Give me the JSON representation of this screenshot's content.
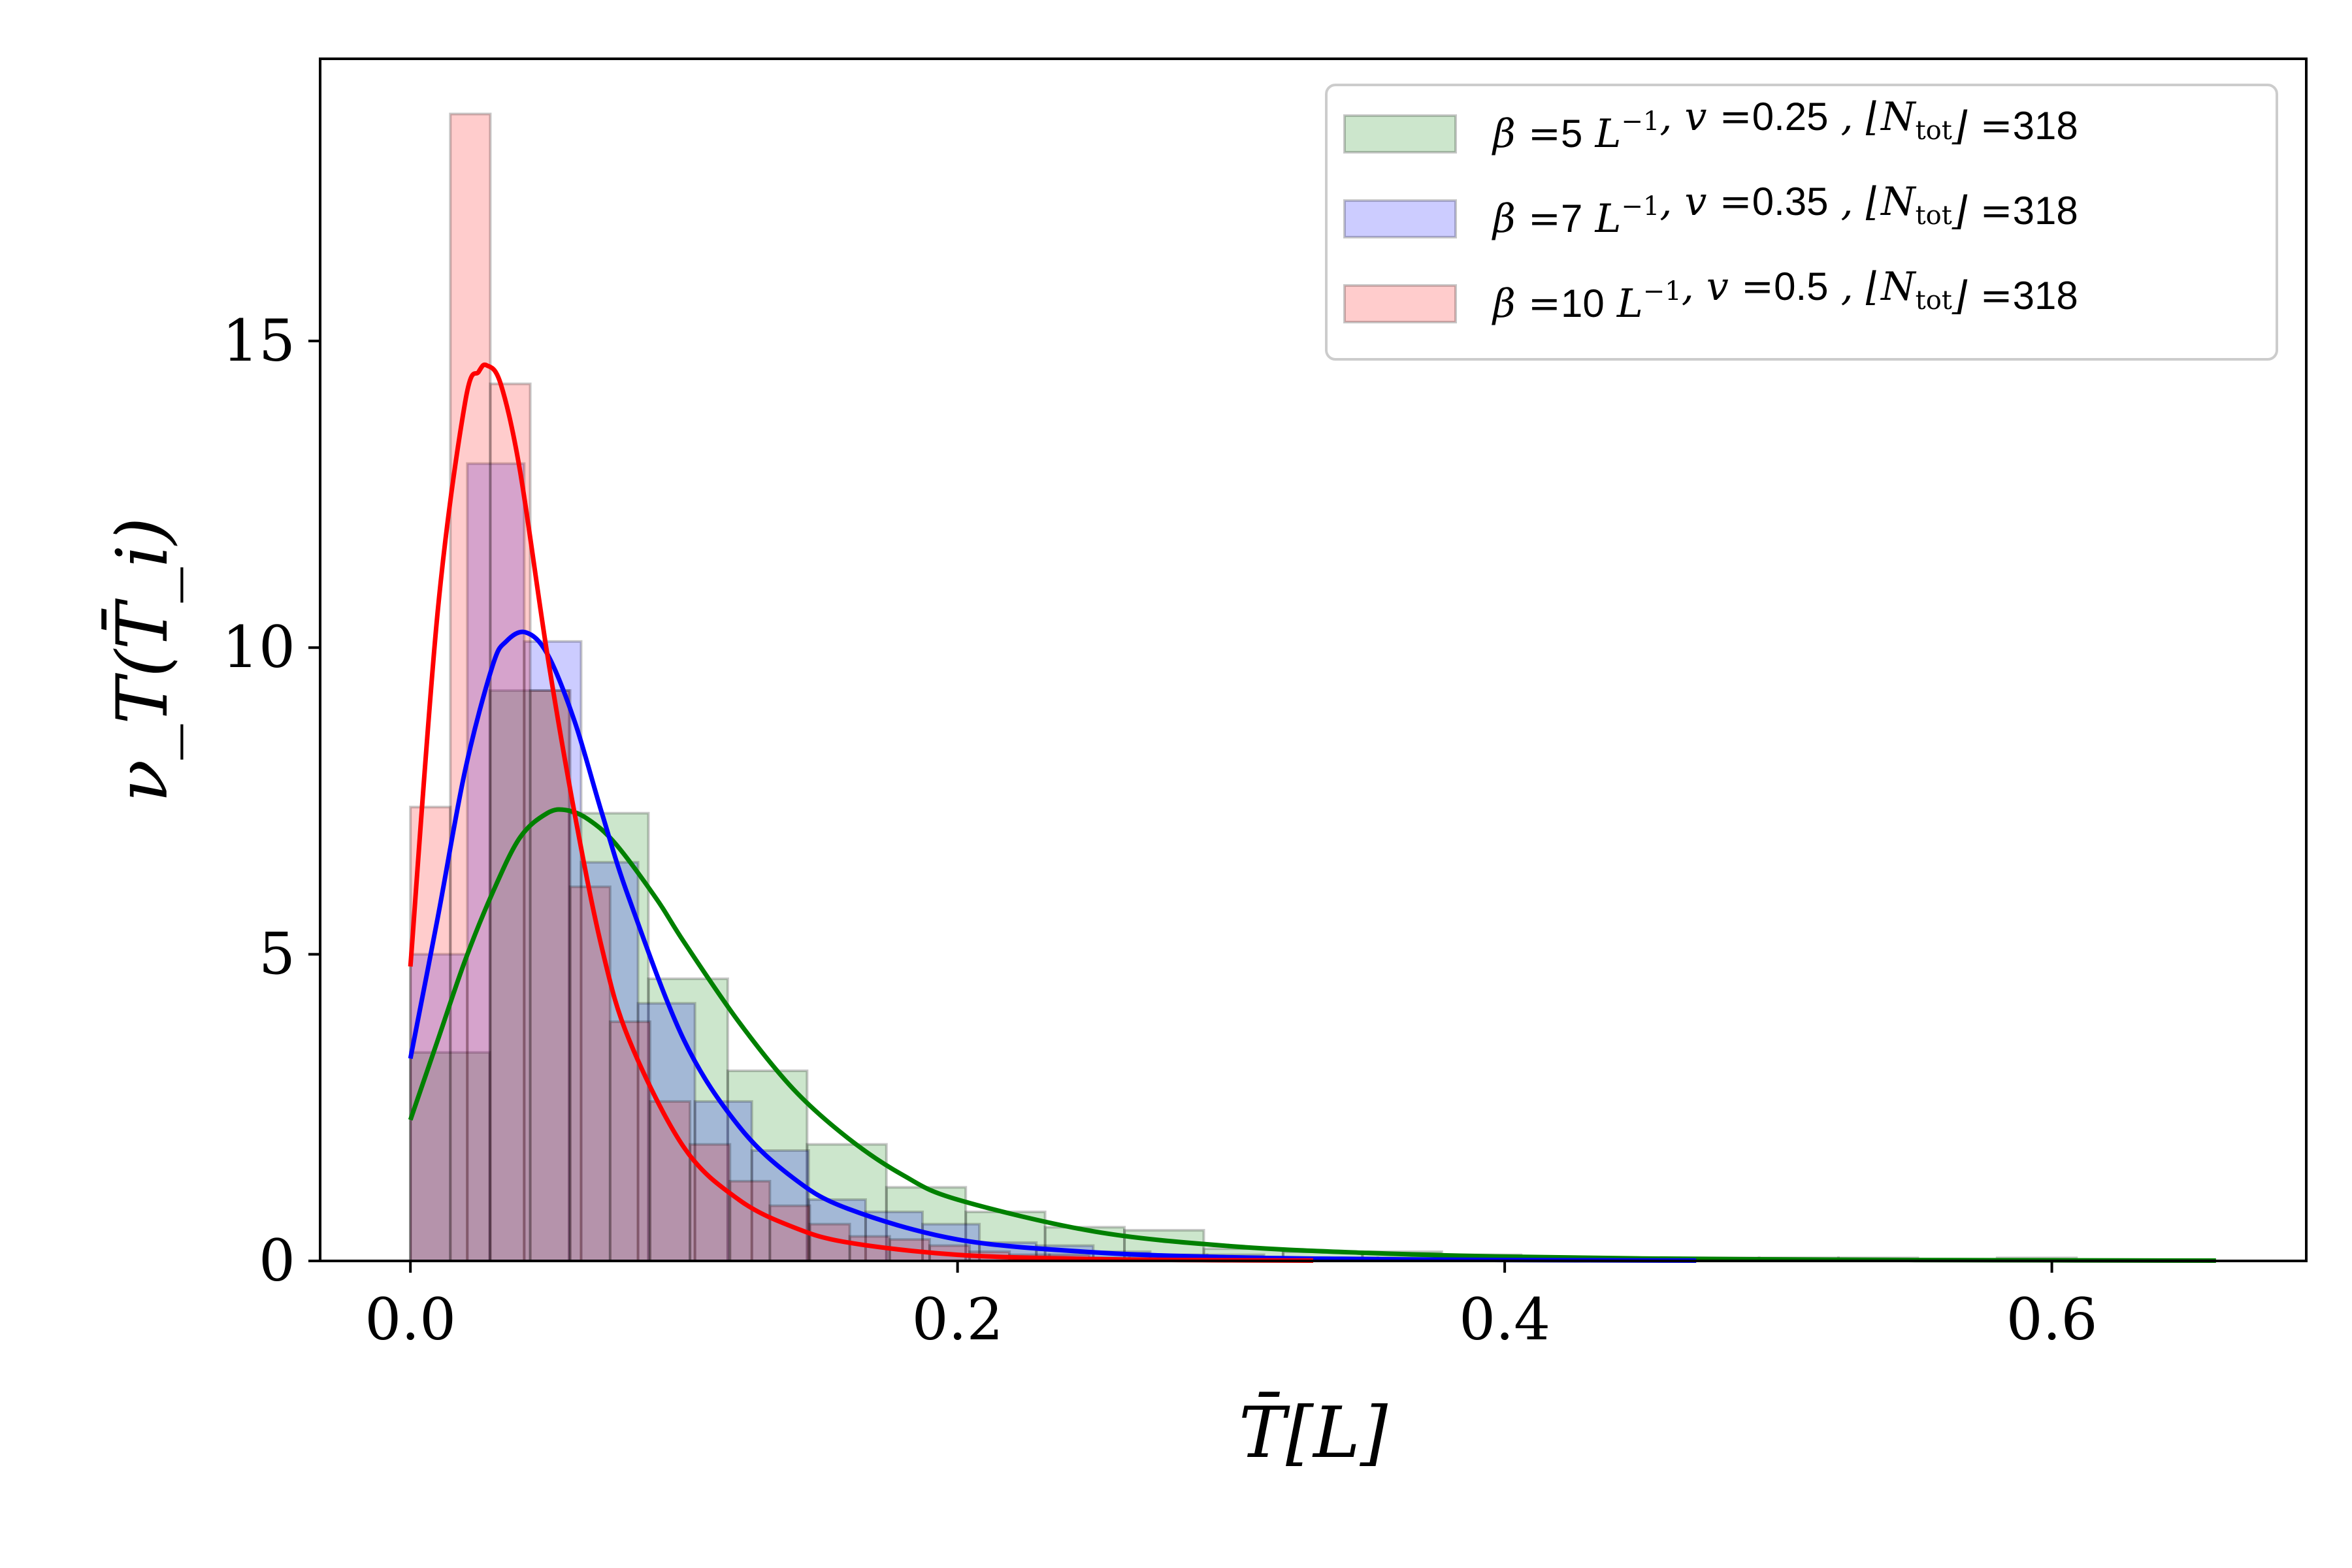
{
  "chart_data": {
    "type": "bar",
    "xlabel": "T̄[L]",
    "ylabel": "ν_T(T̄_i)",
    "xlim": [
      -0.033,
      0.693
    ],
    "ylim": [
      0,
      19.6
    ],
    "xticks": [
      0.0,
      0.2,
      0.4,
      0.6
    ],
    "xtick_labels": [
      "0.0",
      "0.2",
      "0.4",
      "0.6"
    ],
    "yticks": [
      0,
      5,
      10,
      15
    ],
    "ytick_labels": [
      "0",
      "5",
      "10",
      "15"
    ],
    "grid": false,
    "legend_position": "top-right",
    "series": [
      {
        "name": "β =5 L⁻¹, v =0.25 , ⌊N_tot⌋ =318",
        "legend": {
          "beta": "5",
          "v": "0.25",
          "N": "318"
        },
        "color": "#008000",
        "bin_edges": [
          0.0,
          0.029,
          0.058,
          0.087,
          0.116,
          0.145,
          0.174,
          0.203,
          0.232,
          0.261,
          0.29,
          0.319,
          0.348,
          0.377,
          0.406,
          0.435,
          0.464,
          0.493,
          0.522,
          0.551,
          0.58,
          0.609,
          0.638,
          0.667
        ],
        "counts": [
          3.4,
          9.3,
          7.3,
          4.6,
          3.1,
          1.9,
          1.2,
          0.8,
          0.55,
          0.5,
          0.2,
          0.15,
          0.15,
          0.1,
          0.05,
          0.05,
          0.05,
          0.05,
          0.05,
          0.0,
          0.05,
          0.0,
          0.0
        ],
        "curve_x": [
          0.0,
          0.01,
          0.02,
          0.03,
          0.04,
          0.05,
          0.057,
          0.065,
          0.075,
          0.09,
          0.1,
          0.12,
          0.14,
          0.16,
          0.18,
          0.2,
          0.25,
          0.3,
          0.35,
          0.4,
          0.45,
          0.5,
          0.55,
          0.6,
          0.66
        ],
        "curve_y": [
          2.3,
          3.6,
          4.9,
          6.0,
          6.9,
          7.3,
          7.35,
          7.2,
          6.8,
          5.9,
          5.2,
          3.9,
          2.8,
          2.0,
          1.4,
          1.0,
          0.48,
          0.24,
          0.13,
          0.07,
          0.04,
          0.025,
          0.015,
          0.01,
          0.005
        ]
      },
      {
        "name": "β =7 L⁻¹, v =0.35 , ⌊N_tot⌋ =318",
        "legend": {
          "beta": "7",
          "v": "0.35",
          "N": "318"
        },
        "color": "#0000ff",
        "bin_edges": [
          0.0,
          0.0208,
          0.0416,
          0.0624,
          0.0832,
          0.104,
          0.1248,
          0.1456,
          0.1664,
          0.1872,
          0.208,
          0.2288,
          0.2496,
          0.2704,
          0.2912,
          0.312,
          0.3328,
          0.3536,
          0.3744,
          0.3952,
          0.416,
          0.4368,
          0.4576
        ],
        "counts": [
          5.0,
          13.0,
          10.1,
          6.5,
          4.2,
          2.6,
          1.8,
          1.0,
          0.8,
          0.6,
          0.3,
          0.25,
          0.15,
          0.1,
          0.1,
          0.05,
          0.05,
          0.05,
          0.05,
          0.0,
          0.0,
          0.05
        ],
        "curve_x": [
          0.0,
          0.01,
          0.02,
          0.03,
          0.035,
          0.042,
          0.05,
          0.06,
          0.07,
          0.08,
          0.1,
          0.12,
          0.14,
          0.16,
          0.2,
          0.25,
          0.3,
          0.35,
          0.4,
          0.47
        ],
        "curve_y": [
          3.3,
          5.6,
          8.0,
          9.7,
          10.1,
          10.25,
          9.9,
          8.8,
          7.3,
          5.9,
          3.6,
          2.2,
          1.35,
          0.85,
          0.35,
          0.14,
          0.06,
          0.03,
          0.015,
          0.005
        ]
      },
      {
        "name": "β =10 L⁻¹, v =0.5 , ⌊N_tot⌋ =318",
        "legend": {
          "beta": "10",
          "v": "0.5",
          "N": "318"
        },
        "color": "#ff0000",
        "bin_edges": [
          0.0,
          0.0146,
          0.0292,
          0.0438,
          0.0584,
          0.073,
          0.0876,
          0.1022,
          0.1168,
          0.1314,
          0.146,
          0.1606,
          0.1752,
          0.1898,
          0.2044,
          0.219,
          0.2336,
          0.2482,
          0.2628,
          0.2774,
          0.292,
          0.3066,
          0.3212,
          0.3358
        ],
        "counts": [
          7.4,
          18.7,
          14.3,
          9.3,
          6.1,
          3.9,
          2.6,
          1.9,
          1.3,
          0.9,
          0.6,
          0.4,
          0.35,
          0.25,
          0.15,
          0.1,
          0.1,
          0.05,
          0.05,
          0.05,
          0.0,
          0.05,
          0.05
        ],
        "curve_x": [
          0.0,
          0.01,
          0.02,
          0.025,
          0.028,
          0.033,
          0.04,
          0.05,
          0.06,
          0.07,
          0.08,
          0.1,
          0.12,
          0.14,
          0.16,
          0.2,
          0.25,
          0.3,
          0.33
        ],
        "curve_y": [
          4.8,
          10.6,
          14.0,
          14.5,
          14.6,
          14.3,
          12.9,
          9.9,
          7.3,
          5.1,
          3.6,
          1.85,
          1.0,
          0.55,
          0.3,
          0.1,
          0.03,
          0.01,
          0.005
        ]
      }
    ]
  }
}
